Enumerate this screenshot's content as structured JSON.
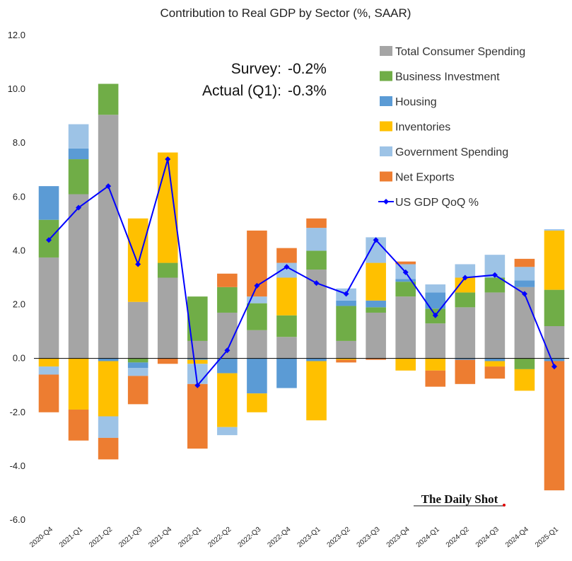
{
  "chart_data": {
    "type": "bar",
    "stacked": true,
    "title": "Contribution to Real GDP by Sector (%, SAAR)",
    "xlabel": "",
    "ylabel": "",
    "ylim": [
      -6,
      12
    ],
    "yticks": [
      "-6.0",
      "-4.0",
      "-2.0",
      "0.0",
      "2.0",
      "4.0",
      "6.0",
      "8.0",
      "10.0",
      "12.0"
    ],
    "ytick_values": [
      -6,
      -4,
      -2,
      0,
      2,
      4,
      6,
      8,
      10,
      12
    ],
    "grid": false,
    "legend_position": "top-right",
    "categories": [
      "2020-Q4",
      "2021-Q1",
      "2021-Q2",
      "2021-Q3",
      "2021-Q4",
      "2022-Q1",
      "2022-Q2",
      "2022-Q3",
      "2022-Q4",
      "2023-Q1",
      "2023-Q2",
      "2023-Q3",
      "2023-Q4",
      "2024-Q1",
      "2024-Q2",
      "2024-Q3",
      "2024-Q4",
      "2025-Q1"
    ],
    "series": [
      {
        "name": "Total Consumer Spending",
        "color": "#a5a5a5",
        "values": [
          3.75,
          6.1,
          9.05,
          2.1,
          3.0,
          0.65,
          1.7,
          1.05,
          0.8,
          3.3,
          0.65,
          1.7,
          2.3,
          1.3,
          1.9,
          2.45,
          2.65,
          1.2
        ]
      },
      {
        "name": "Business Investment",
        "color": "#70ad47",
        "values": [
          1.4,
          1.3,
          1.15,
          -0.15,
          0.55,
          1.65,
          0.95,
          1.0,
          0.8,
          0.7,
          1.3,
          0.2,
          0.55,
          0.55,
          0.55,
          0.55,
          -0.4,
          1.35
        ]
      },
      {
        "name": "Housing",
        "color": "#5b9bd5",
        "values": [
          1.25,
          0.4,
          -0.1,
          -0.2,
          0.0,
          -0.05,
          -0.55,
          -1.3,
          -1.1,
          -0.1,
          0.2,
          0.25,
          0.1,
          0.6,
          -0.05,
          -0.1,
          0.25,
          -0.1
        ]
      },
      {
        "name": "Inventories",
        "color": "#ffc000",
        "values": [
          -0.3,
          -1.9,
          -2.05,
          3.1,
          4.1,
          -0.15,
          -2.0,
          -0.7,
          1.4,
          -2.2,
          -0.05,
          1.4,
          -0.45,
          -0.45,
          0.55,
          -0.2,
          -0.8,
          2.2
        ]
      },
      {
        "name": "Government Spending",
        "color": "#9dc3e6",
        "values": [
          -0.3,
          0.9,
          -0.8,
          -0.3,
          0.0,
          -0.75,
          -0.3,
          0.25,
          0.55,
          0.85,
          0.45,
          0.95,
          0.55,
          0.3,
          0.5,
          0.85,
          0.5,
          0.05
        ]
      },
      {
        "name": "Net Exports",
        "color": "#ed7d31",
        "values": [
          -1.4,
          -1.15,
          -0.8,
          -1.05,
          -0.2,
          -2.4,
          0.5,
          2.45,
          0.55,
          0.35,
          -0.1,
          -0.05,
          0.1,
          -0.6,
          -0.9,
          -0.45,
          0.3,
          -4.8
        ]
      }
    ],
    "line": {
      "name": "US GDP QoQ %",
      "color": "#0000ff",
      "values": [
        4.4,
        5.6,
        6.4,
        3.5,
        7.4,
        -1.0,
        0.3,
        2.7,
        3.4,
        2.8,
        2.4,
        4.4,
        3.2,
        1.6,
        3.0,
        3.1,
        2.4,
        -0.3
      ]
    },
    "annotations": {
      "survey_label": "Survey:",
      "survey_value": "-0.2%",
      "actual_label": "Actual (Q1):",
      "actual_value": "-0.3%"
    },
    "source": "The Daily Shot"
  }
}
